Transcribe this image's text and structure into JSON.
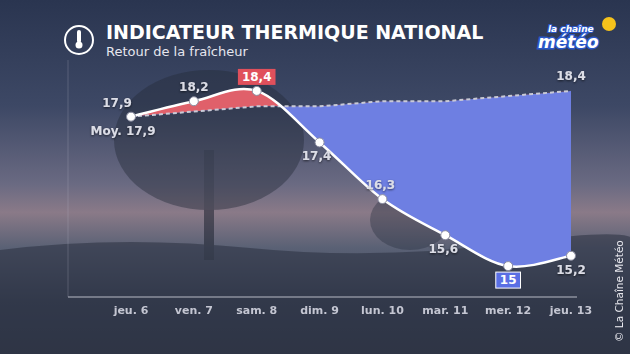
{
  "chart_data": {
    "type": "line",
    "title": "INDICATEUR THERMIQUE NATIONAL",
    "subtitle": "Retour de la fraîcheur",
    "logo": [
      "la chaîne",
      "météo"
    ],
    "credit": "© La Chaîne Météo",
    "categories": [
      "jeu. 6",
      "ven. 7",
      "sam. 8",
      "dim. 9",
      "lun. 10",
      "mar. 11",
      "mer. 12",
      "jeu. 13"
    ],
    "series": [
      {
        "color": "#ffffff",
        "marker": "circle",
        "values": [
          17.9,
          18.2,
          18.4,
          17.4,
          16.3,
          15.6,
          15,
          15.2
        ],
        "value_labels": [
          "17,9",
          "18,2",
          "18,4",
          "17,4",
          "16,3",
          "15,6",
          "15",
          "15,2"
        ]
      },
      {
        "name": "Moy.",
        "color": "#c9cad6",
        "line_style": "dashed",
        "values": [
          17.9,
          18.0,
          18.1,
          18.1,
          18.2,
          18.2,
          18.3,
          18.4
        ],
        "value_labels": [
          "17,9",
          null,
          null,
          null,
          null,
          null,
          null,
          "18,4"
        ]
      }
    ],
    "ylim": [
      14.4,
      19
    ],
    "tick_labels": "x",
    "data_labels": true
  }
}
